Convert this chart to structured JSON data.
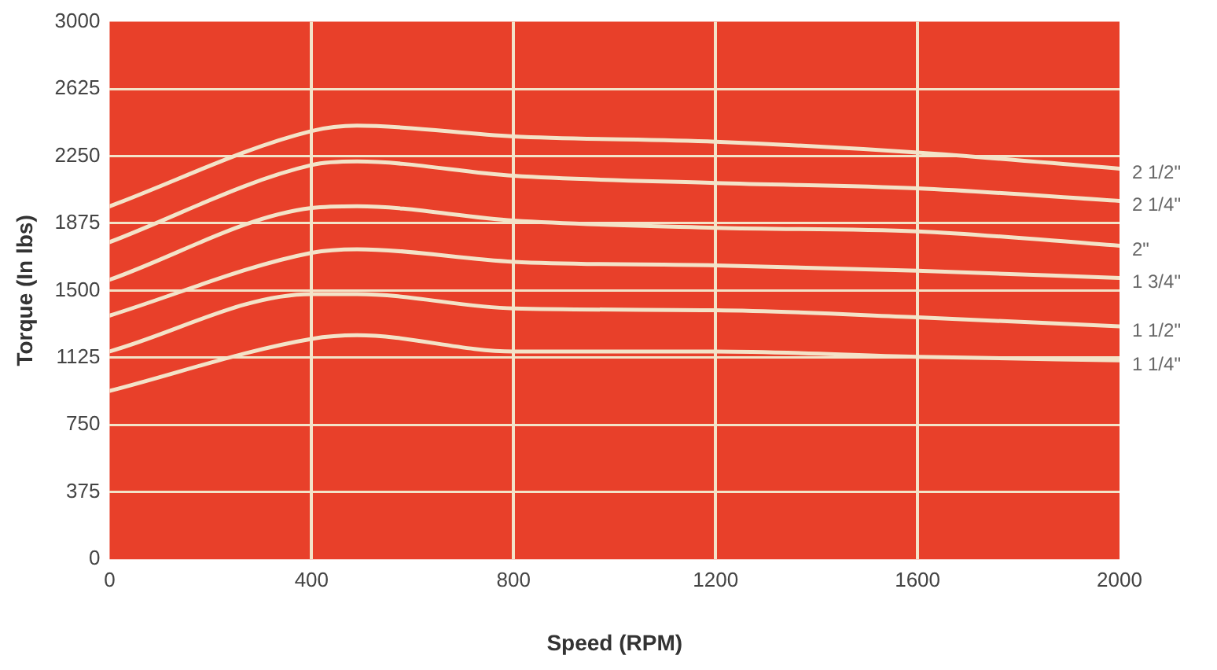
{
  "chart_data": {
    "type": "line",
    "xlabel": "Speed (RPM)",
    "ylabel": "Torque (In lbs)",
    "x": [
      0,
      400,
      490,
      800,
      1200,
      1600,
      2000
    ],
    "xlim": [
      0,
      2000
    ],
    "xticks": [
      0,
      400,
      800,
      1200,
      1600,
      2000
    ],
    "ylim": [
      0,
      3000
    ],
    "yticks": [
      0,
      375,
      750,
      1125,
      1500,
      1875,
      2250,
      2625,
      3000
    ],
    "grid": true,
    "legend": false,
    "marker": "none",
    "line_style": "solid",
    "series": [
      {
        "name": "2 1/2\"",
        "color": "#f3e3c8",
        "values": [
          1970,
          2390,
          2420,
          2360,
          2330,
          2270,
          2180
        ]
      },
      {
        "name": "2 1/4\"",
        "color": "#f3e3c8",
        "values": [
          1770,
          2200,
          2220,
          2140,
          2100,
          2070,
          2000
        ]
      },
      {
        "name": "2\"",
        "color": "#f3e3c8",
        "values": [
          1560,
          1960,
          1970,
          1890,
          1850,
          1830,
          1750
        ]
      },
      {
        "name": "1 3/4\"",
        "color": "#f3e3c8",
        "values": [
          1360,
          1710,
          1730,
          1660,
          1640,
          1610,
          1570
        ]
      },
      {
        "name": "1 1/2\"",
        "color": "#f3e3c8",
        "values": [
          1160,
          1480,
          1480,
          1400,
          1390,
          1350,
          1300
        ]
      },
      {
        "name": "1 1/4\"",
        "color": "#f3e3c8",
        "values": [
          940,
          1230,
          1250,
          1160,
          1160,
          1130,
          1110
        ]
      }
    ]
  }
}
